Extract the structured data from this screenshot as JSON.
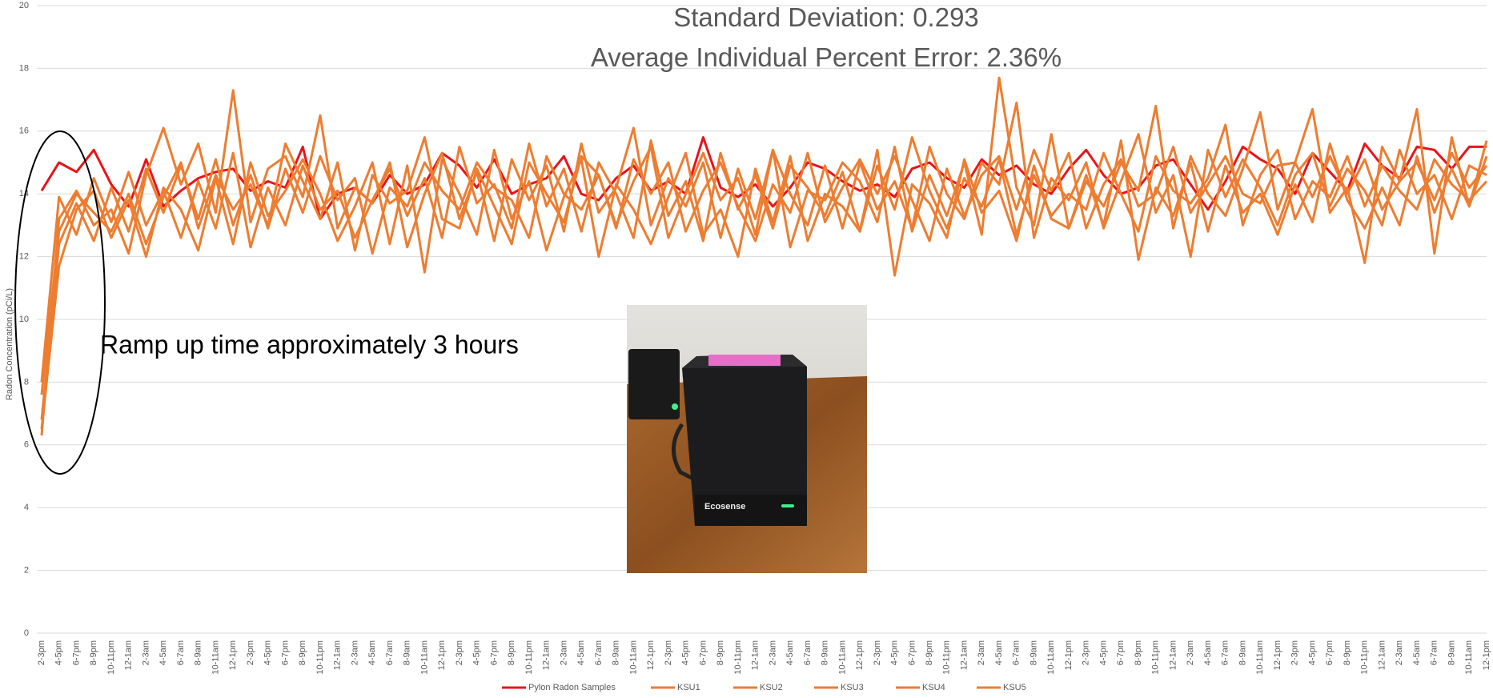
{
  "chart_data": {
    "type": "line",
    "subtitle": [
      "Standard Deviation: 0.293",
      "Average Individual Percent Error: 2.36%"
    ],
    "annotation": "Ramp up time approximately 3 hours",
    "photo_label": "Ecosense",
    "y_label": "Radon Concentration (pCi/L)",
    "ylim": [
      0,
      20
    ],
    "yticks": [
      0,
      2,
      4,
      6,
      8,
      10,
      12,
      14,
      16,
      18,
      20
    ],
    "grid": true,
    "legend": "bottom",
    "categories": [
      "2-3pm",
      "4-5pm",
      "6-7pm",
      "8-9pm",
      "10-11pm",
      "12-1am",
      "2-3am",
      "4-5am",
      "6-7am",
      "8-9am",
      "10-11am",
      "12-1pm",
      "2-3pm",
      "4-5pm",
      "6-7pm",
      "8-9pm",
      "10-11pm",
      "12-1am",
      "2-3am",
      "4-5am",
      "6-7am",
      "8-9am",
      "10-11am",
      "12-1pm",
      "2-3pm",
      "4-5pm",
      "6-7pm",
      "8-9pm",
      "10-11pm",
      "12-1am",
      "2-3am",
      "4-5am",
      "6-7am",
      "8-9am",
      "10-11am",
      "12-1pm",
      "2-3pm",
      "4-5pm",
      "6-7pm",
      "8-9pm",
      "10-11pm",
      "12-1am",
      "2-3am",
      "4-5am",
      "6-7am",
      "8-9am",
      "10-11am",
      "12-1pm",
      "2-3pm",
      "4-5pm",
      "6-7pm",
      "8-9pm",
      "10-11pm",
      "12-1am",
      "2-3am",
      "4-5am",
      "6-7am",
      "8-9am",
      "10-11am",
      "12-1pm",
      "2-3pm",
      "4-5pm",
      "6-7pm",
      "8-9pm",
      "10-11pm",
      "12-1am",
      "2-3am",
      "4-5am",
      "6-7am",
      "8-9am",
      "10-11am",
      "12-1pm",
      "2-3pm",
      "4-5pm",
      "6-7pm",
      "8-9pm",
      "10-11pm",
      "12-1am",
      "2-3am",
      "4-5am",
      "6-7am",
      "8-9am",
      "10-11am",
      "12-1pm"
    ],
    "series": [
      {
        "name": "Pylon Radon Samples",
        "color": "#e8141a",
        "values": [
          14.1,
          15.0,
          14.7,
          15.4,
          14.3,
          13.6,
          15.1,
          13.6,
          14.1,
          14.5,
          14.7,
          14.8,
          14.1,
          14.4,
          14.2,
          15.5,
          13.2,
          14.0,
          14.2,
          13.7,
          14.6,
          14.0,
          14.3,
          15.3,
          14.9,
          14.2,
          15.1,
          14.0,
          14.3,
          14.5,
          15.2,
          14.0,
          13.8,
          14.5,
          14.9,
          14.1,
          14.4,
          14.0,
          15.8,
          14.2,
          13.9,
          14.3,
          13.6,
          14.2,
          15.0,
          14.8,
          14.4,
          14.1,
          14.3,
          13.9,
          14.8,
          15.0,
          14.5,
          14.2,
          15.1,
          14.6,
          14.9,
          14.3,
          14.0,
          14.8,
          15.4,
          14.6,
          14.0,
          14.2,
          14.9,
          15.1,
          14.3,
          13.5,
          14.4,
          15.5,
          15.1,
          14.8,
          14.0,
          15.3,
          14.7,
          14.1,
          15.6,
          14.9,
          14.5,
          15.5,
          15.4,
          14.8,
          15.5,
          15.5
        ]
      },
      {
        "name": "KSU1",
        "color": "#ed7d31",
        "values": [
          6.3,
          13.2,
          14.1,
          13.0,
          13.5,
          12.1,
          14.6,
          16.1,
          14.3,
          15.6,
          13.4,
          17.3,
          13.1,
          14.8,
          15.2,
          13.9,
          16.5,
          12.9,
          14.2,
          13.7,
          15.0,
          12.3,
          14.0,
          15.3,
          13.2,
          14.7,
          12.5,
          15.1,
          13.8,
          14.9,
          12.8,
          15.6,
          13.4,
          14.2,
          16.1,
          13.0,
          14.5,
          13.6,
          15.0,
          12.6,
          14.8,
          13.2,
          15.4,
          12.3,
          14.1,
          13.8,
          15.0,
          14.4,
          13.1,
          15.5,
          12.8,
          14.6,
          13.3,
          15.0,
          12.7,
          17.7,
          14.2,
          13.0,
          15.9,
          12.9,
          14.4,
          13.6,
          15.0,
          14.1,
          16.8,
          12.9,
          15.2,
          14.0,
          13.3,
          14.8,
          16.6,
          13.5,
          15.0,
          16.7,
          13.4,
          14.2,
          11.8,
          15.5,
          14.4,
          16.7,
          12.1,
          15.8,
          13.6,
          15.7
        ]
      },
      {
        "name": "KSU2",
        "color": "#ed7d31",
        "values": [
          6.5,
          11.7,
          13.5,
          14.1,
          12.6,
          13.8,
          12.0,
          14.2,
          13.5,
          12.2,
          14.5,
          12.4,
          15.0,
          13.3,
          14.1,
          15.1,
          14.0,
          12.5,
          13.6,
          15.0,
          12.4,
          14.9,
          11.5,
          15.1,
          14.0,
          12.7,
          15.4,
          13.2,
          14.4,
          12.2,
          13.9,
          15.1,
          12.0,
          14.3,
          13.5,
          12.4,
          13.9,
          15.3,
          12.7,
          13.5,
          12.0,
          14.8,
          13.1,
          15.2,
          12.5,
          14.0,
          13.6,
          12.8,
          15.4,
          11.4,
          14.3,
          13.7,
          12.6,
          15.1,
          13.4,
          14.1,
          12.5,
          14.9,
          13.2,
          12.9,
          14.6,
          13.0,
          15.7,
          11.9,
          14.2,
          13.3,
          15.0,
          12.8,
          14.9,
          13.4,
          14.0,
          12.7,
          14.3,
          13.1,
          15.6,
          13.8,
          12.9,
          14.2,
          13.0,
          15.2,
          13.4,
          14.8,
          13.6,
          15.2
        ]
      },
      {
        "name": "KSU3",
        "color": "#ed7d31",
        "values": [
          7.6,
          12.8,
          14.0,
          13.4,
          12.8,
          14.0,
          12.4,
          13.9,
          15.0,
          12.9,
          14.6,
          13.5,
          14.3,
          13.0,
          15.6,
          14.4,
          13.2,
          15.0,
          12.2,
          14.6,
          13.7,
          14.1,
          15.8,
          13.2,
          12.9,
          14.8,
          13.6,
          12.4,
          15.0,
          14.0,
          13.1,
          15.2,
          14.6,
          13.0,
          14.4,
          15.5,
          12.6,
          14.0,
          15.3,
          13.8,
          14.5,
          12.7,
          15.4,
          14.0,
          13.0,
          14.9,
          12.9,
          15.0,
          13.5,
          14.4,
          12.9,
          15.5,
          14.0,
          13.2,
          15.0,
          14.3,
          16.9,
          12.6,
          14.5,
          13.8,
          15.0,
          12.9,
          14.4,
          15.9,
          13.4,
          14.6,
          12.0,
          15.4,
          13.9,
          15.1,
          14.2,
          13.0,
          14.6,
          15.3,
          13.6,
          14.8,
          14.1,
          13.0,
          15.4,
          14.0,
          14.6,
          13.2,
          14.9,
          14.6
        ]
      },
      {
        "name": "KSU4",
        "color": "#ed7d31",
        "values": [
          8.0,
          13.9,
          12.7,
          14.5,
          13.1,
          14.7,
          13.0,
          14.1,
          12.6,
          14.4,
          12.9,
          15.3,
          12.3,
          14.2,
          13.0,
          14.9,
          13.5,
          14.1,
          12.6,
          13.8,
          14.8,
          13.3,
          14.5,
          12.6,
          15.5,
          13.7,
          14.3,
          12.9,
          15.6,
          13.6,
          14.8,
          12.8,
          15.0,
          14.0,
          12.6,
          15.7,
          13.3,
          14.4,
          12.5,
          15.3,
          13.5,
          14.6,
          12.9,
          14.9,
          14.2,
          13.3,
          14.7,
          12.8,
          14.9,
          13.5,
          15.8,
          14.1,
          12.9,
          14.5,
          13.6,
          15.1,
          12.7,
          14.6,
          13.3,
          14.0,
          13.5,
          15.3,
          14.0,
          12.8,
          15.2,
          14.1,
          13.7,
          14.5,
          16.2,
          13.0,
          14.6,
          15.4,
          13.2,
          14.4,
          13.9,
          15.2,
          13.6,
          14.9,
          14.1,
          13.5,
          15.1,
          14.3,
          13.8,
          14.4
        ]
      },
      {
        "name": "KSU5",
        "color": "#ed7d31",
        "values": [
          6.8,
          12.4,
          13.7,
          12.5,
          14.2,
          12.8,
          14.8,
          13.4,
          14.9,
          13.2,
          15.1,
          13.0,
          14.6,
          12.9,
          14.8,
          13.4,
          15.2,
          13.8,
          14.5,
          12.1,
          14.2,
          13.6,
          15.0,
          14.1,
          13.5,
          15.0,
          14.2,
          13.8,
          12.6,
          15.2,
          14.0,
          13.5,
          14.6,
          12.9,
          15.1,
          14.0,
          15.0,
          12.8,
          14.1,
          15.0,
          13.6,
          12.5,
          14.3,
          13.4,
          15.3,
          13.1,
          14.2,
          15.1,
          14.0,
          15.2,
          13.8,
          12.5,
          14.8,
          13.3,
          14.6,
          15.2,
          13.5,
          15.4,
          14.1,
          15.3,
          12.9,
          14.3,
          15.1,
          13.6,
          14.0,
          15.5,
          13.4,
          14.3,
          15.2,
          14.0,
          13.7,
          14.9,
          15.0,
          13.9,
          15.2,
          14.0,
          15.1,
          13.5,
          14.4,
          15.0,
          13.8,
          15.3,
          14.2,
          14.9
        ]
      }
    ]
  }
}
